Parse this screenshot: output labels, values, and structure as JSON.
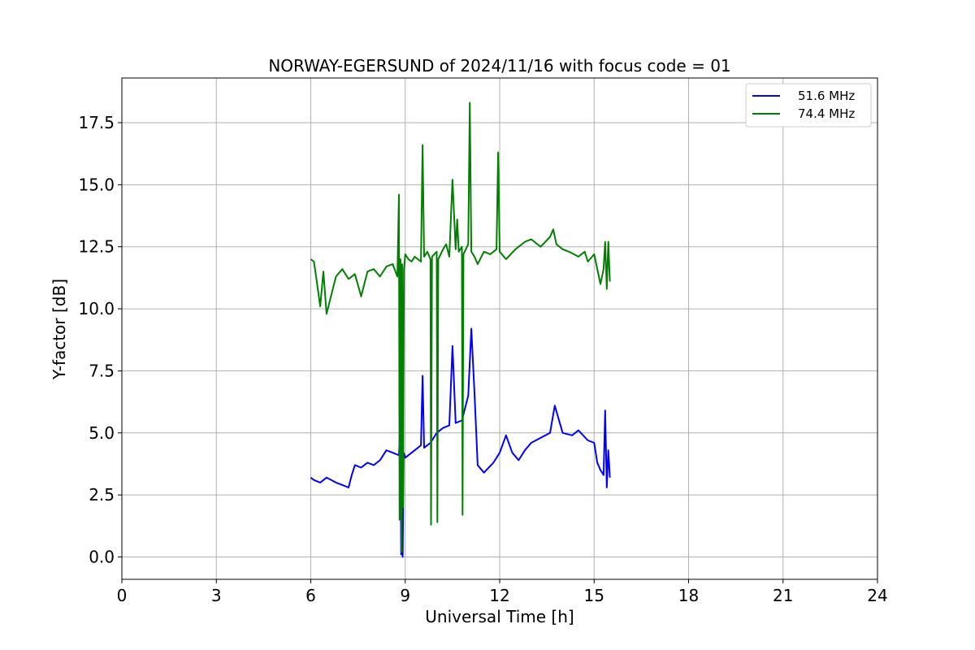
{
  "chart_data": {
    "type": "line",
    "title": "NORWAY-EGERSUND of 2024/11/16 with focus code = 01",
    "xlabel": "Universal Time [h]",
    "ylabel": "Y-factor [dB]",
    "xlim": [
      0,
      24
    ],
    "ylim": [
      -0.9,
      19.3
    ],
    "xticks": [
      0,
      3,
      6,
      9,
      12,
      15,
      18,
      21,
      24
    ],
    "xtick_labels": [
      "0",
      "3",
      "6",
      "9",
      "12",
      "15",
      "18",
      "21",
      "24"
    ],
    "yticks": [
      0.0,
      2.5,
      5.0,
      7.5,
      10.0,
      12.5,
      15.0,
      17.5
    ],
    "ytick_labels": [
      "0.0",
      "2.5",
      "5.0",
      "7.5",
      "10.0",
      "12.5",
      "15.0",
      "17.5"
    ],
    "grid": true,
    "legend_position": "top-right",
    "series": [
      {
        "name": "51.6 MHz",
        "color": "#0000ff",
        "x": [
          6.0,
          6.1,
          6.3,
          6.5,
          6.8,
          7.0,
          7.2,
          7.3,
          7.4,
          7.6,
          7.8,
          8.0,
          8.2,
          8.4,
          8.6,
          8.8,
          8.85,
          8.87,
          8.9,
          8.92,
          8.95,
          9.0,
          9.1,
          9.3,
          9.5,
          9.55,
          9.6,
          9.8,
          10.0,
          10.2,
          10.4,
          10.5,
          10.6,
          10.8,
          11.0,
          11.1,
          11.2,
          11.3,
          11.5,
          11.8,
          12.0,
          12.2,
          12.4,
          12.6,
          12.8,
          13.0,
          13.3,
          13.6,
          13.75,
          14.0,
          14.3,
          14.5,
          14.8,
          15.0,
          15.1,
          15.2,
          15.3,
          15.35,
          15.4,
          15.45,
          15.5
        ],
        "y": [
          3.2,
          3.1,
          3.0,
          3.2,
          3.0,
          2.9,
          2.8,
          3.3,
          3.7,
          3.6,
          3.8,
          3.7,
          3.9,
          4.3,
          4.2,
          4.1,
          5.4,
          0.1,
          4.0,
          0.0,
          4.2,
          4.0,
          4.1,
          4.3,
          4.5,
          7.3,
          4.4,
          4.6,
          5.0,
          5.2,
          5.3,
          8.5,
          5.4,
          5.5,
          6.5,
          9.2,
          6.6,
          3.7,
          3.4,
          3.8,
          4.2,
          4.9,
          4.2,
          3.9,
          4.3,
          4.6,
          4.8,
          5.0,
          6.1,
          5.0,
          4.9,
          5.1,
          4.7,
          4.6,
          3.8,
          3.5,
          3.3,
          5.9,
          2.8,
          4.3,
          3.2
        ]
      },
      {
        "name": "74.4 MHz",
        "color": "#008000",
        "x": [
          6.0,
          6.1,
          6.2,
          6.3,
          6.4,
          6.5,
          6.8,
          7.0,
          7.2,
          7.4,
          7.6,
          7.8,
          8.0,
          8.2,
          8.4,
          8.6,
          8.75,
          8.8,
          8.82,
          8.85,
          8.88,
          8.9,
          8.93,
          8.96,
          9.0,
          9.1,
          9.2,
          9.3,
          9.4,
          9.5,
          9.55,
          9.6,
          9.7,
          9.8,
          9.82,
          9.85,
          10.0,
          10.02,
          10.05,
          10.2,
          10.3,
          10.4,
          10.5,
          10.6,
          10.65,
          10.7,
          10.8,
          10.82,
          10.85,
          11.0,
          11.05,
          11.1,
          11.2,
          11.3,
          11.5,
          11.7,
          11.9,
          11.95,
          12.0,
          12.2,
          12.5,
          12.8,
          13.0,
          13.3,
          13.6,
          13.7,
          13.8,
          14.0,
          14.2,
          14.5,
          14.7,
          14.8,
          15.0,
          15.2,
          15.3,
          15.35,
          15.4,
          15.45,
          15.5
        ],
        "y": [
          12.0,
          11.9,
          11.0,
          10.1,
          11.5,
          9.8,
          11.3,
          11.6,
          11.2,
          11.4,
          10.5,
          11.5,
          11.6,
          11.3,
          11.7,
          11.8,
          11.3,
          14.6,
          1.5,
          12.0,
          0.2,
          11.8,
          2.0,
          11.6,
          12.2,
          12.0,
          11.9,
          12.1,
          12.0,
          11.9,
          16.6,
          12.1,
          12.3,
          12.0,
          1.3,
          12.1,
          12.3,
          1.4,
          12.0,
          12.4,
          12.6,
          12.1,
          15.2,
          12.4,
          13.6,
          12.3,
          12.5,
          1.7,
          12.2,
          12.6,
          18.3,
          12.3,
          12.1,
          11.8,
          12.3,
          12.2,
          12.4,
          16.3,
          12.3,
          12.0,
          12.4,
          12.7,
          12.8,
          12.5,
          12.9,
          13.2,
          12.6,
          12.4,
          12.3,
          12.1,
          12.3,
          11.9,
          12.2,
          11.0,
          11.6,
          12.7,
          10.8,
          12.7,
          11.1
        ]
      }
    ]
  }
}
